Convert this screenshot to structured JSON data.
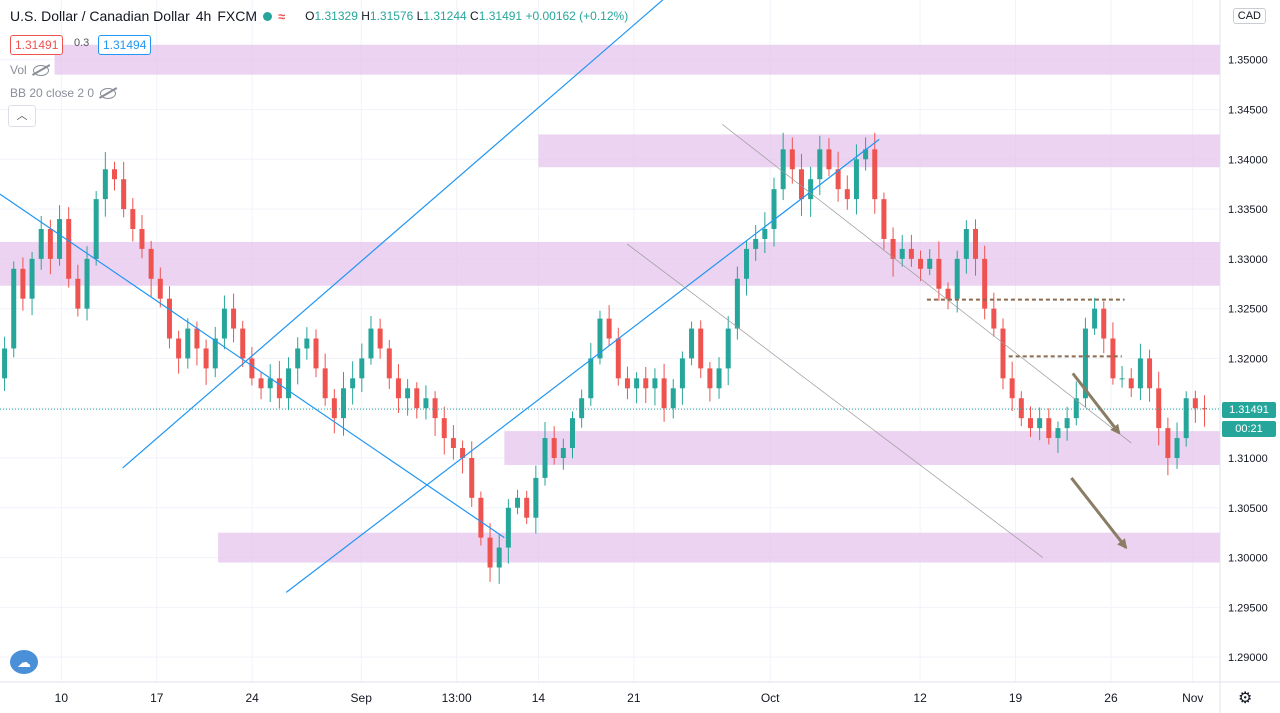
{
  "header": {
    "symbol": "U.S. Dollar / Canadian Dollar",
    "interval": "4h",
    "exchange": "FXCM",
    "ohlc": {
      "o_label": "O",
      "o": "1.31329",
      "h_label": "H",
      "h": "1.31576",
      "l_label": "L",
      "l": "1.31244",
      "c_label": "C",
      "c": "1.31491",
      "change": "+0.00162 (+0.12%)"
    }
  },
  "trade": {
    "sell_price": "1.31491",
    "spread": "0.3",
    "buy_price": "1.31494"
  },
  "indicators": [
    {
      "label": "Vol"
    },
    {
      "label": "BB 20 close 2 0"
    }
  ],
  "currency": "CAD",
  "price_tag": {
    "price": "1.31491",
    "countdown": "00:21"
  },
  "colors": {
    "up": "#26a69a",
    "down": "#ef5350",
    "zone": "#e6c8ee",
    "trendline": "#2196f3",
    "arrow": "#8b7d65",
    "resistance": "#8b6a4e"
  },
  "chart_data": {
    "type": "candlestick",
    "ylim": [
      1.2875,
      1.356
    ],
    "y_ticks": [
      "1.35000",
      "1.34500",
      "1.34000",
      "1.33500",
      "1.33000",
      "1.32500",
      "1.32000",
      "1.31500",
      "1.31000",
      "1.30500",
      "1.30000",
      "1.29500",
      "1.29000"
    ],
    "x_ticks": [
      {
        "label": "10",
        "day": 0
      },
      {
        "label": "17",
        "day": 7
      },
      {
        "label": "24",
        "day": 14
      },
      {
        "label": "Sep",
        "day": 22
      },
      {
        "label": "13:00",
        "day": 29
      },
      {
        "label": "14",
        "day": 35
      },
      {
        "label": "21",
        "day": 42
      },
      {
        "label": "Oct",
        "day": 52
      },
      {
        "label": "12",
        "day": 63
      },
      {
        "label": "19",
        "day": 70
      },
      {
        "label": "26",
        "day": 77
      },
      {
        "label": "Nov",
        "day": 83
      }
    ],
    "x_range_days": [
      -4.5,
      85
    ],
    "closes": [
      1.321,
      1.329,
      1.326,
      1.33,
      1.333,
      1.33,
      1.334,
      1.328,
      1.325,
      1.33,
      1.336,
      1.339,
      1.338,
      1.335,
      1.333,
      1.331,
      1.328,
      1.326,
      1.322,
      1.32,
      1.323,
      1.321,
      1.319,
      1.322,
      1.325,
      1.323,
      1.32,
      1.318,
      1.317,
      1.318,
      1.316,
      1.319,
      1.321,
      1.322,
      1.319,
      1.316,
      1.314,
      1.317,
      1.318,
      1.32,
      1.323,
      1.321,
      1.318,
      1.316,
      1.317,
      1.315,
      1.316,
      1.314,
      1.312,
      1.311,
      1.31,
      1.306,
      1.302,
      1.299,
      1.301,
      1.305,
      1.306,
      1.304,
      1.308,
      1.312,
      1.31,
      1.311,
      1.314,
      1.316,
      1.32,
      1.324,
      1.322,
      1.318,
      1.317,
      1.318,
      1.317,
      1.318,
      1.315,
      1.317,
      1.32,
      1.323,
      1.319,
      1.317,
      1.319,
      1.323,
      1.328,
      1.331,
      1.332,
      1.333,
      1.337,
      1.341,
      1.339,
      1.336,
      1.338,
      1.341,
      1.339,
      1.337,
      1.336,
      1.34,
      1.341,
      1.336,
      1.332,
      1.33,
      1.331,
      1.33,
      1.329,
      1.33,
      1.327,
      1.326,
      1.33,
      1.333,
      1.33,
      1.325,
      1.323,
      1.318,
      1.316,
      1.314,
      1.313,
      1.314,
      1.312,
      1.313,
      1.314,
      1.316,
      1.323,
      1.325,
      1.322,
      1.318,
      1.318,
      1.317,
      1.32,
      1.317,
      1.313,
      1.31,
      1.312,
      1.316,
      1.315,
      1.3149
    ]
  },
  "zones": [
    {
      "from": 1.3485,
      "to": 1.3515,
      "start_day": -0.5
    },
    {
      "from": 1.3392,
      "to": 1.3425,
      "start_day": 35
    },
    {
      "from": 1.3273,
      "to": 1.3317,
      "start_day": -4.5
    },
    {
      "from": 1.3093,
      "to": 1.3127,
      "start_day": 32.5
    },
    {
      "from": 1.2995,
      "to": 1.3025,
      "start_day": 11.5
    }
  ],
  "trendlines": [
    {
      "p1": [
        -4.5,
        1.3365
      ],
      "p2": [
        32.5,
        1.302
      ],
      "color": "trendline"
    },
    {
      "p1": [
        4.5,
        1.309
      ],
      "p2": [
        45.8,
        1.358
      ],
      "color": "trendline"
    },
    {
      "p1": [
        16.5,
        1.2965
      ],
      "p2": [
        60.0,
        1.342
      ],
      "color": "trendline"
    },
    {
      "p1": [
        48.5,
        1.3435
      ],
      "p2": [
        78.5,
        1.3115
      ],
      "color": "thin"
    },
    {
      "p1": [
        41.5,
        1.3315
      ],
      "p2": [
        72.0,
        1.3
      ],
      "color": "thin"
    }
  ],
  "resistance": [
    {
      "y": 1.3259,
      "from_day": 63.5,
      "to_day": 78.0
    },
    {
      "y": 1.3202,
      "from_day": 69.5,
      "to_day": 77.8
    }
  ],
  "arrows": [
    {
      "from": [
        74.2,
        1.3185
      ],
      "to": [
        77.6,
        1.3125
      ]
    },
    {
      "from": [
        74.1,
        1.308
      ],
      "to": [
        78.1,
        1.301
      ]
    }
  ]
}
